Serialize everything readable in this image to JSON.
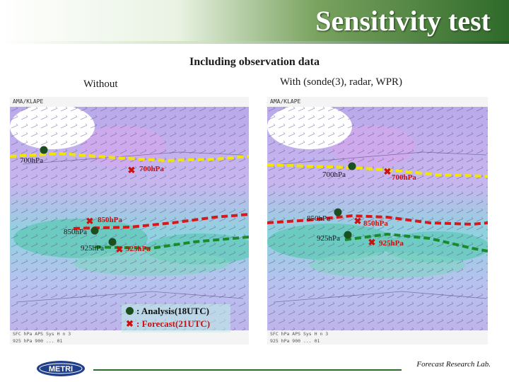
{
  "header": {
    "title": "Sensitivity test"
  },
  "subtitle": "Including observation data",
  "panels": {
    "left": {
      "label": "Without",
      "map_header": "AMA/KLAPE",
      "map_footer_line1": "SFC  hPa  APS  Sys  H  n  3",
      "map_footer_line2": "925 hPa  900  ...  01",
      "markers": {
        "analysis_700": "700hPa",
        "forecast_700": "700hPa",
        "forecast_850": "850hPa",
        "analysis_850": "850hPa",
        "analysis_925": "925hPa",
        "forecast_925": "925hPa"
      }
    },
    "right": {
      "label": "With (sonde(3), radar, WPR)",
      "map_header": "AMA/KLAPE",
      "map_footer_line1": "SFC  hPa  APS  Sys  H  n  3",
      "map_footer_line2": "925 hPa  900  ...  01",
      "markers": {
        "analysis_700": "700hPa",
        "forecast_700": "700hPa",
        "analysis_850": "850hPa",
        "forecast_850": "850hPa",
        "analysis_925": "925hPa",
        "forecast_925": "925hPa"
      }
    }
  },
  "legend": {
    "analysis": ": Analysis(18UTC)",
    "forecast": ": Forecast(21UTC)"
  },
  "footer": {
    "logo_text": "METRI",
    "credit": "Forecast Research Lab."
  },
  "colors": {
    "header_green": "#2f6a2a",
    "analysis_marker": "#1b4f1f",
    "forecast_marker": "#cc1010",
    "line_700": "#f2e600",
    "line_850": "#d81818",
    "line_925": "#1a8a2a"
  }
}
